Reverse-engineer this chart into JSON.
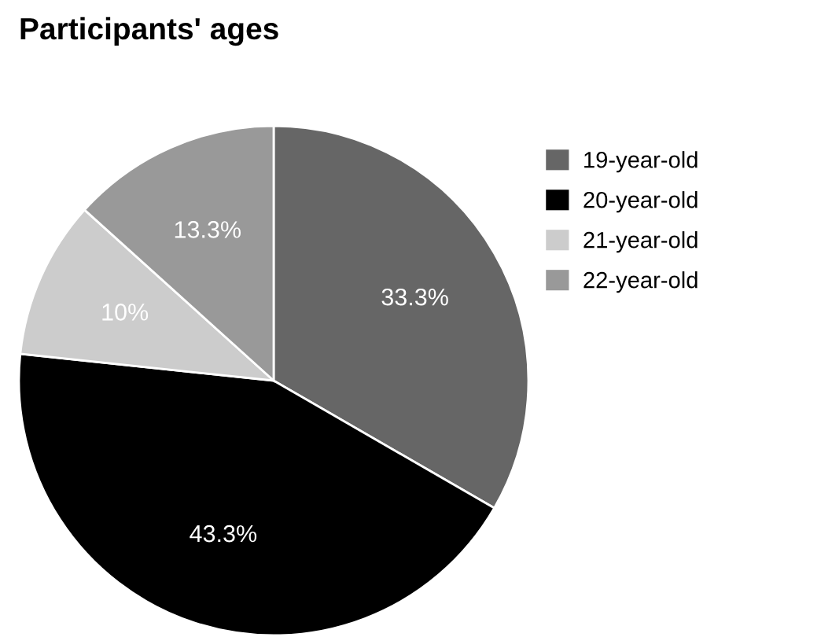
{
  "chart_data": {
    "type": "pie",
    "title": "Participants' ages",
    "categories": [
      "19-year-old",
      "20-year-old",
      "21-year-old",
      "22-year-old"
    ],
    "values": [
      33.3,
      43.3,
      10,
      13.3
    ],
    "colors": [
      "#666666",
      "#000000",
      "#cccccc",
      "#999999"
    ],
    "value_labels": [
      "33.3%",
      "43.3%",
      "10%",
      "13.3%"
    ],
    "legend": "right"
  }
}
